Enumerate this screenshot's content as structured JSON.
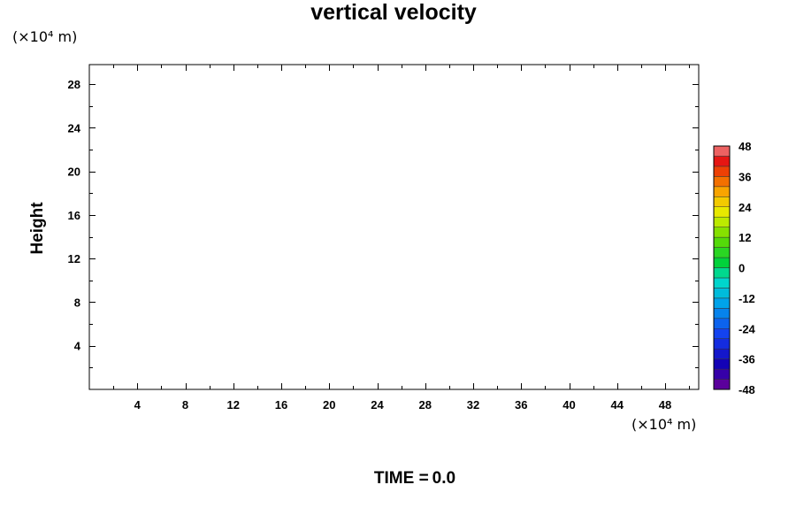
{
  "chart_data": {
    "type": "heatmap",
    "title": "vertical velocity",
    "xlabel": "",
    "ylabel": "Height",
    "x_unit": "(×10⁴ m)",
    "y_unit": "(×10⁴ m)",
    "xlim": [
      0,
      50.8
    ],
    "ylim": [
      0,
      29.8
    ],
    "x_ticks": [
      4,
      8,
      12,
      16,
      20,
      24,
      28,
      32,
      36,
      40,
      44,
      48
    ],
    "y_ticks": [
      4,
      8,
      12,
      16,
      20,
      24,
      28
    ],
    "values": [],
    "colorbar": {
      "min": -48,
      "max": 48,
      "step": 4,
      "labels": [
        48,
        36,
        24,
        12,
        0,
        -12,
        -24,
        -36,
        -48
      ]
    },
    "footer": {
      "label": "TIME =",
      "value": "0.0"
    }
  }
}
